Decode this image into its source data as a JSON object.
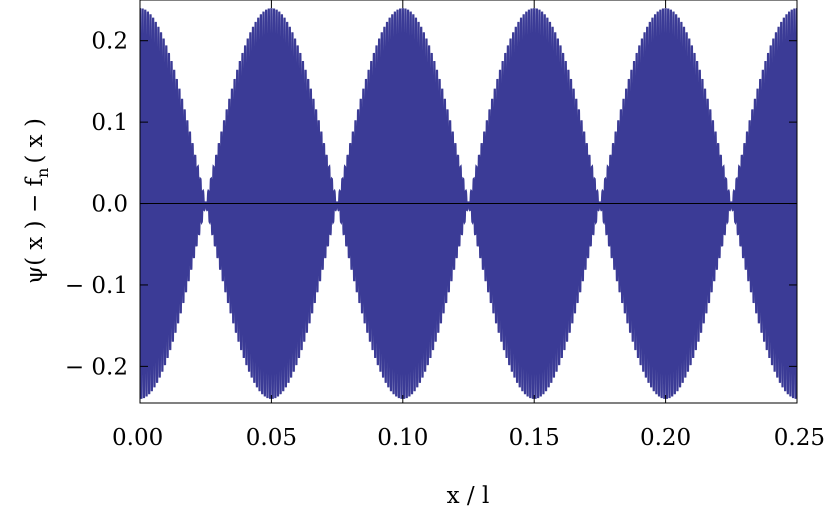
{
  "chart_data": {
    "type": "line",
    "title": "",
    "xlabel": "x / l",
    "ylabel": "ψ( x ) − f",
    "ylabel_subscript": "n",
    "ylabel_tail": "( x )",
    "xlim": [
      0,
      0.25
    ],
    "ylim": [
      -0.245,
      0.25
    ],
    "x_ticks": [
      0,
      0.05,
      0.1,
      0.15,
      0.2,
      0.25
    ],
    "x_tick_labels": [
      "0.00",
      "0.05",
      "0.10",
      "0.15",
      "0.20",
      "0.25"
    ],
    "y_ticks": [
      -0.2,
      -0.1,
      0,
      0.1,
      0.2
    ],
    "y_tick_labels": [
      "− 0.2",
      "− 0.1",
      "0.0",
      "0.1",
      "0.2"
    ],
    "series": [
      {
        "color": "#3b3b96",
        "envelope_period": 0.05,
        "envelope_amplitude": 0.24,
        "envelope_nodes": [
          0.025,
          0.075,
          0.125,
          0.175,
          0.225
        ],
        "carrier_cycles_per_unit": 1000,
        "envelope_points": {
          "x": [
            0,
            0.025,
            0.05,
            0.075,
            0.1,
            0.125,
            0.15,
            0.175,
            0.2,
            0.225,
            0.25
          ],
          "amplitude": [
            0.24,
            0.0,
            0.24,
            0.0,
            0.24,
            0.0,
            0.24,
            0.0,
            0.24,
            0.0,
            0.24
          ]
        }
      }
    ],
    "zero_line": true,
    "grid": false,
    "legend": "none"
  }
}
